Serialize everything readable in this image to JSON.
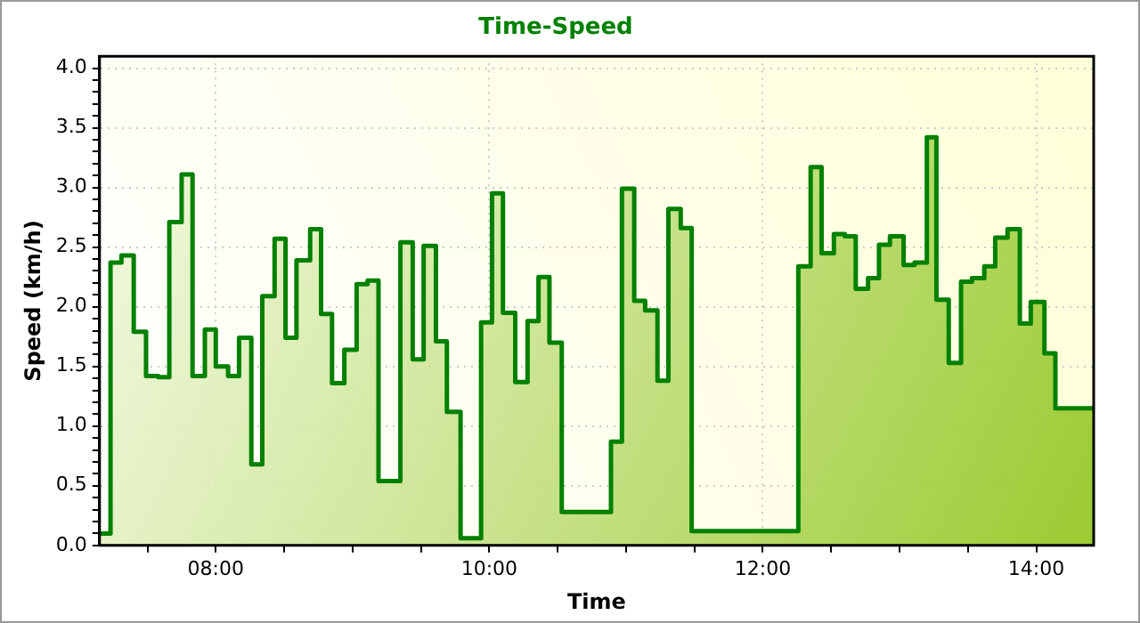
{
  "chart_data": {
    "type": "area",
    "title": "Time-Speed",
    "xlabel": "Time",
    "ylabel": "Speed (km/h)",
    "grid": true,
    "legend": false,
    "marker": "none",
    "line_style": "solid",
    "xlim": [
      7.15,
      14.42
    ],
    "xticks": [
      {
        "value": 7.5,
        "label": null
      },
      {
        "value": 8,
        "label": "08:00"
      },
      {
        "value": 8.5,
        "label": null
      },
      {
        "value": 9,
        "label": null
      },
      {
        "value": 9.5,
        "label": null
      },
      {
        "value": 10,
        "label": "10:00"
      },
      {
        "value": 10.5,
        "label": null
      },
      {
        "value": 11,
        "label": null
      },
      {
        "value": 11.5,
        "label": null
      },
      {
        "value": 12,
        "label": "12:00"
      },
      {
        "value": 12.5,
        "label": null
      },
      {
        "value": 13,
        "label": null
      },
      {
        "value": 13.5,
        "label": null
      },
      {
        "value": 14,
        "label": "14:00"
      }
    ],
    "ylim": [
      0,
      4.1
    ],
    "yticks": [
      {
        "value": 0,
        "label": "0.0"
      },
      {
        "value": 0.1,
        "label": null
      },
      {
        "value": 0.2,
        "label": null
      },
      {
        "value": 0.3,
        "label": null
      },
      {
        "value": 0.4,
        "label": null
      },
      {
        "value": 0.5,
        "label": "0.5"
      },
      {
        "value": 0.6,
        "label": null
      },
      {
        "value": 0.7,
        "label": null
      },
      {
        "value": 0.8,
        "label": null
      },
      {
        "value": 0.9,
        "label": null
      },
      {
        "value": 1,
        "label": "1.0"
      },
      {
        "value": 1.1,
        "label": null
      },
      {
        "value": 1.2,
        "label": null
      },
      {
        "value": 1.3,
        "label": null
      },
      {
        "value": 1.4,
        "label": null
      },
      {
        "value": 1.5,
        "label": "1.5"
      },
      {
        "value": 1.6,
        "label": null
      },
      {
        "value": 1.7,
        "label": null
      },
      {
        "value": 1.8,
        "label": null
      },
      {
        "value": 1.9,
        "label": null
      },
      {
        "value": 2,
        "label": "2.0"
      },
      {
        "value": 2.1,
        "label": null
      },
      {
        "value": 2.2,
        "label": null
      },
      {
        "value": 2.3,
        "label": null
      },
      {
        "value": 2.4,
        "label": null
      },
      {
        "value": 2.5,
        "label": "2.5"
      },
      {
        "value": 2.6,
        "label": null
      },
      {
        "value": 2.7,
        "label": null
      },
      {
        "value": 2.8,
        "label": null
      },
      {
        "value": 2.9,
        "label": null
      },
      {
        "value": 3,
        "label": "3.0"
      },
      {
        "value": 3.1,
        "label": null
      },
      {
        "value": 3.2,
        "label": null
      },
      {
        "value": 3.3,
        "label": null
      },
      {
        "value": 3.4,
        "label": null
      },
      {
        "value": 3.5,
        "label": "3.5"
      },
      {
        "value": 3.6,
        "label": null
      },
      {
        "value": 3.7,
        "label": null
      },
      {
        "value": 3.8,
        "label": null
      },
      {
        "value": 3.9,
        "label": null
      },
      {
        "value": 4,
        "label": "4.0"
      }
    ],
    "series": [
      {
        "color": "#008000",
        "x": [
          7.15,
          7.23,
          7.23,
          7.31,
          7.31,
          7.4,
          7.4,
          7.49,
          7.49,
          7.58,
          7.58,
          7.66,
          7.66,
          7.75,
          7.75,
          7.83,
          7.83,
          7.92,
          7.92,
          8.0,
          8.0,
          8.09,
          8.09,
          8.17,
          8.17,
          8.26,
          8.26,
          8.34,
          8.34,
          8.43,
          8.43,
          8.51,
          8.51,
          8.59,
          8.59,
          8.69,
          8.69,
          8.77,
          8.77,
          8.85,
          8.85,
          8.94,
          8.94,
          9.03,
          9.03,
          9.11,
          9.11,
          9.19,
          9.19,
          9.35,
          9.35,
          9.44,
          9.44,
          9.52,
          9.52,
          9.61,
          9.61,
          9.69,
          9.69,
          9.79,
          9.79,
          9.94,
          9.94,
          10.02,
          10.02,
          10.1,
          10.1,
          10.19,
          10.19,
          10.28,
          10.28,
          10.36,
          10.36,
          10.44,
          10.44,
          10.53,
          10.53,
          10.89,
          10.89,
          10.97,
          10.97,
          11.06,
          11.06,
          11.14,
          11.14,
          11.23,
          11.23,
          11.31,
          11.31,
          11.4,
          11.4,
          11.48,
          11.48,
          12.26,
          12.26,
          12.35,
          12.35,
          12.43,
          12.43,
          12.52,
          12.52,
          12.6,
          12.6,
          12.68,
          12.68,
          12.77,
          12.77,
          12.85,
          12.85,
          12.93,
          12.93,
          13.03,
          13.03,
          13.11,
          13.11,
          13.2,
          13.2,
          13.27,
          13.27,
          13.36,
          13.36,
          13.45,
          13.45,
          13.53,
          13.53,
          13.62,
          13.62,
          13.7,
          13.7,
          13.79,
          13.79,
          13.88,
          13.88,
          13.96,
          13.96,
          14.06,
          14.06,
          14.14,
          14.14,
          14.42
        ],
        "values": [
          0.1,
          0.1,
          2.37,
          2.37,
          2.43,
          2.43,
          1.79,
          1.79,
          1.42,
          1.42,
          1.41,
          1.41,
          2.71,
          2.71,
          3.11,
          3.11,
          1.42,
          1.42,
          1.81,
          1.81,
          1.5,
          1.5,
          1.42,
          1.42,
          1.74,
          1.74,
          0.68,
          0.68,
          2.09,
          2.09,
          2.57,
          2.57,
          1.74,
          1.74,
          2.39,
          2.39,
          2.65,
          2.65,
          1.94,
          1.94,
          1.36,
          1.36,
          1.64,
          1.64,
          2.19,
          2.19,
          2.22,
          2.22,
          0.54,
          0.54,
          2.54,
          2.54,
          1.56,
          1.56,
          2.51,
          2.51,
          1.71,
          1.71,
          1.12,
          1.12,
          0.06,
          0.06,
          1.87,
          1.87,
          2.95,
          2.95,
          1.95,
          1.95,
          1.37,
          1.37,
          1.88,
          1.88,
          2.25,
          2.25,
          1.7,
          1.7,
          0.28,
          0.28,
          0.87,
          0.87,
          2.99,
          2.99,
          2.05,
          2.05,
          1.97,
          1.97,
          1.38,
          1.38,
          2.82,
          2.82,
          2.66,
          2.66,
          0.12,
          0.12,
          2.34,
          2.34,
          3.17,
          3.17,
          2.45,
          2.45,
          2.61,
          2.61,
          2.59,
          2.59,
          2.15,
          2.15,
          2.24,
          2.24,
          2.52,
          2.52,
          2.59,
          2.59,
          2.35,
          2.35,
          2.37,
          2.37,
          3.42,
          3.42,
          2.06,
          2.06,
          1.53,
          1.53,
          2.21,
          2.21,
          2.24,
          2.24,
          2.34,
          2.34,
          2.58,
          2.58,
          2.65,
          2.65,
          1.86,
          1.86,
          2.04,
          2.04,
          1.61,
          1.61,
          1.15,
          1.15
        ]
      }
    ]
  }
}
